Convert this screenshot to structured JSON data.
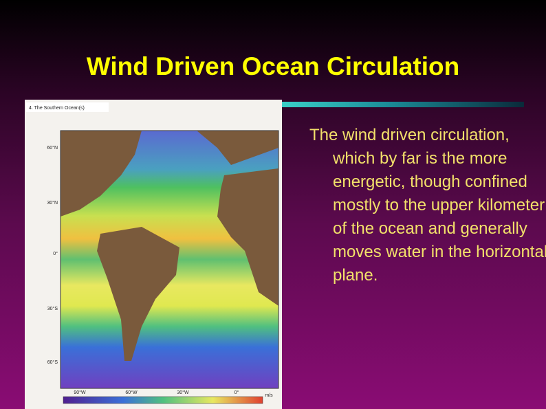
{
  "slide": {
    "title": "Wind Driven Ocean Circulation",
    "body": "The wind driven circulation, which by far is the more energetic, though confined mostly to the upper kilometer of the ocean and generally moves water in the horizontal plane.",
    "figure": {
      "caption": "4. The Southern Ocean(s)",
      "lat_labels": [
        "60°N",
        "30°N",
        "0°",
        "30°S",
        "60°S"
      ],
      "lon_labels": [
        "90°W",
        "60°W",
        "30°W",
        "0°"
      ],
      "unit": "m/s"
    }
  }
}
